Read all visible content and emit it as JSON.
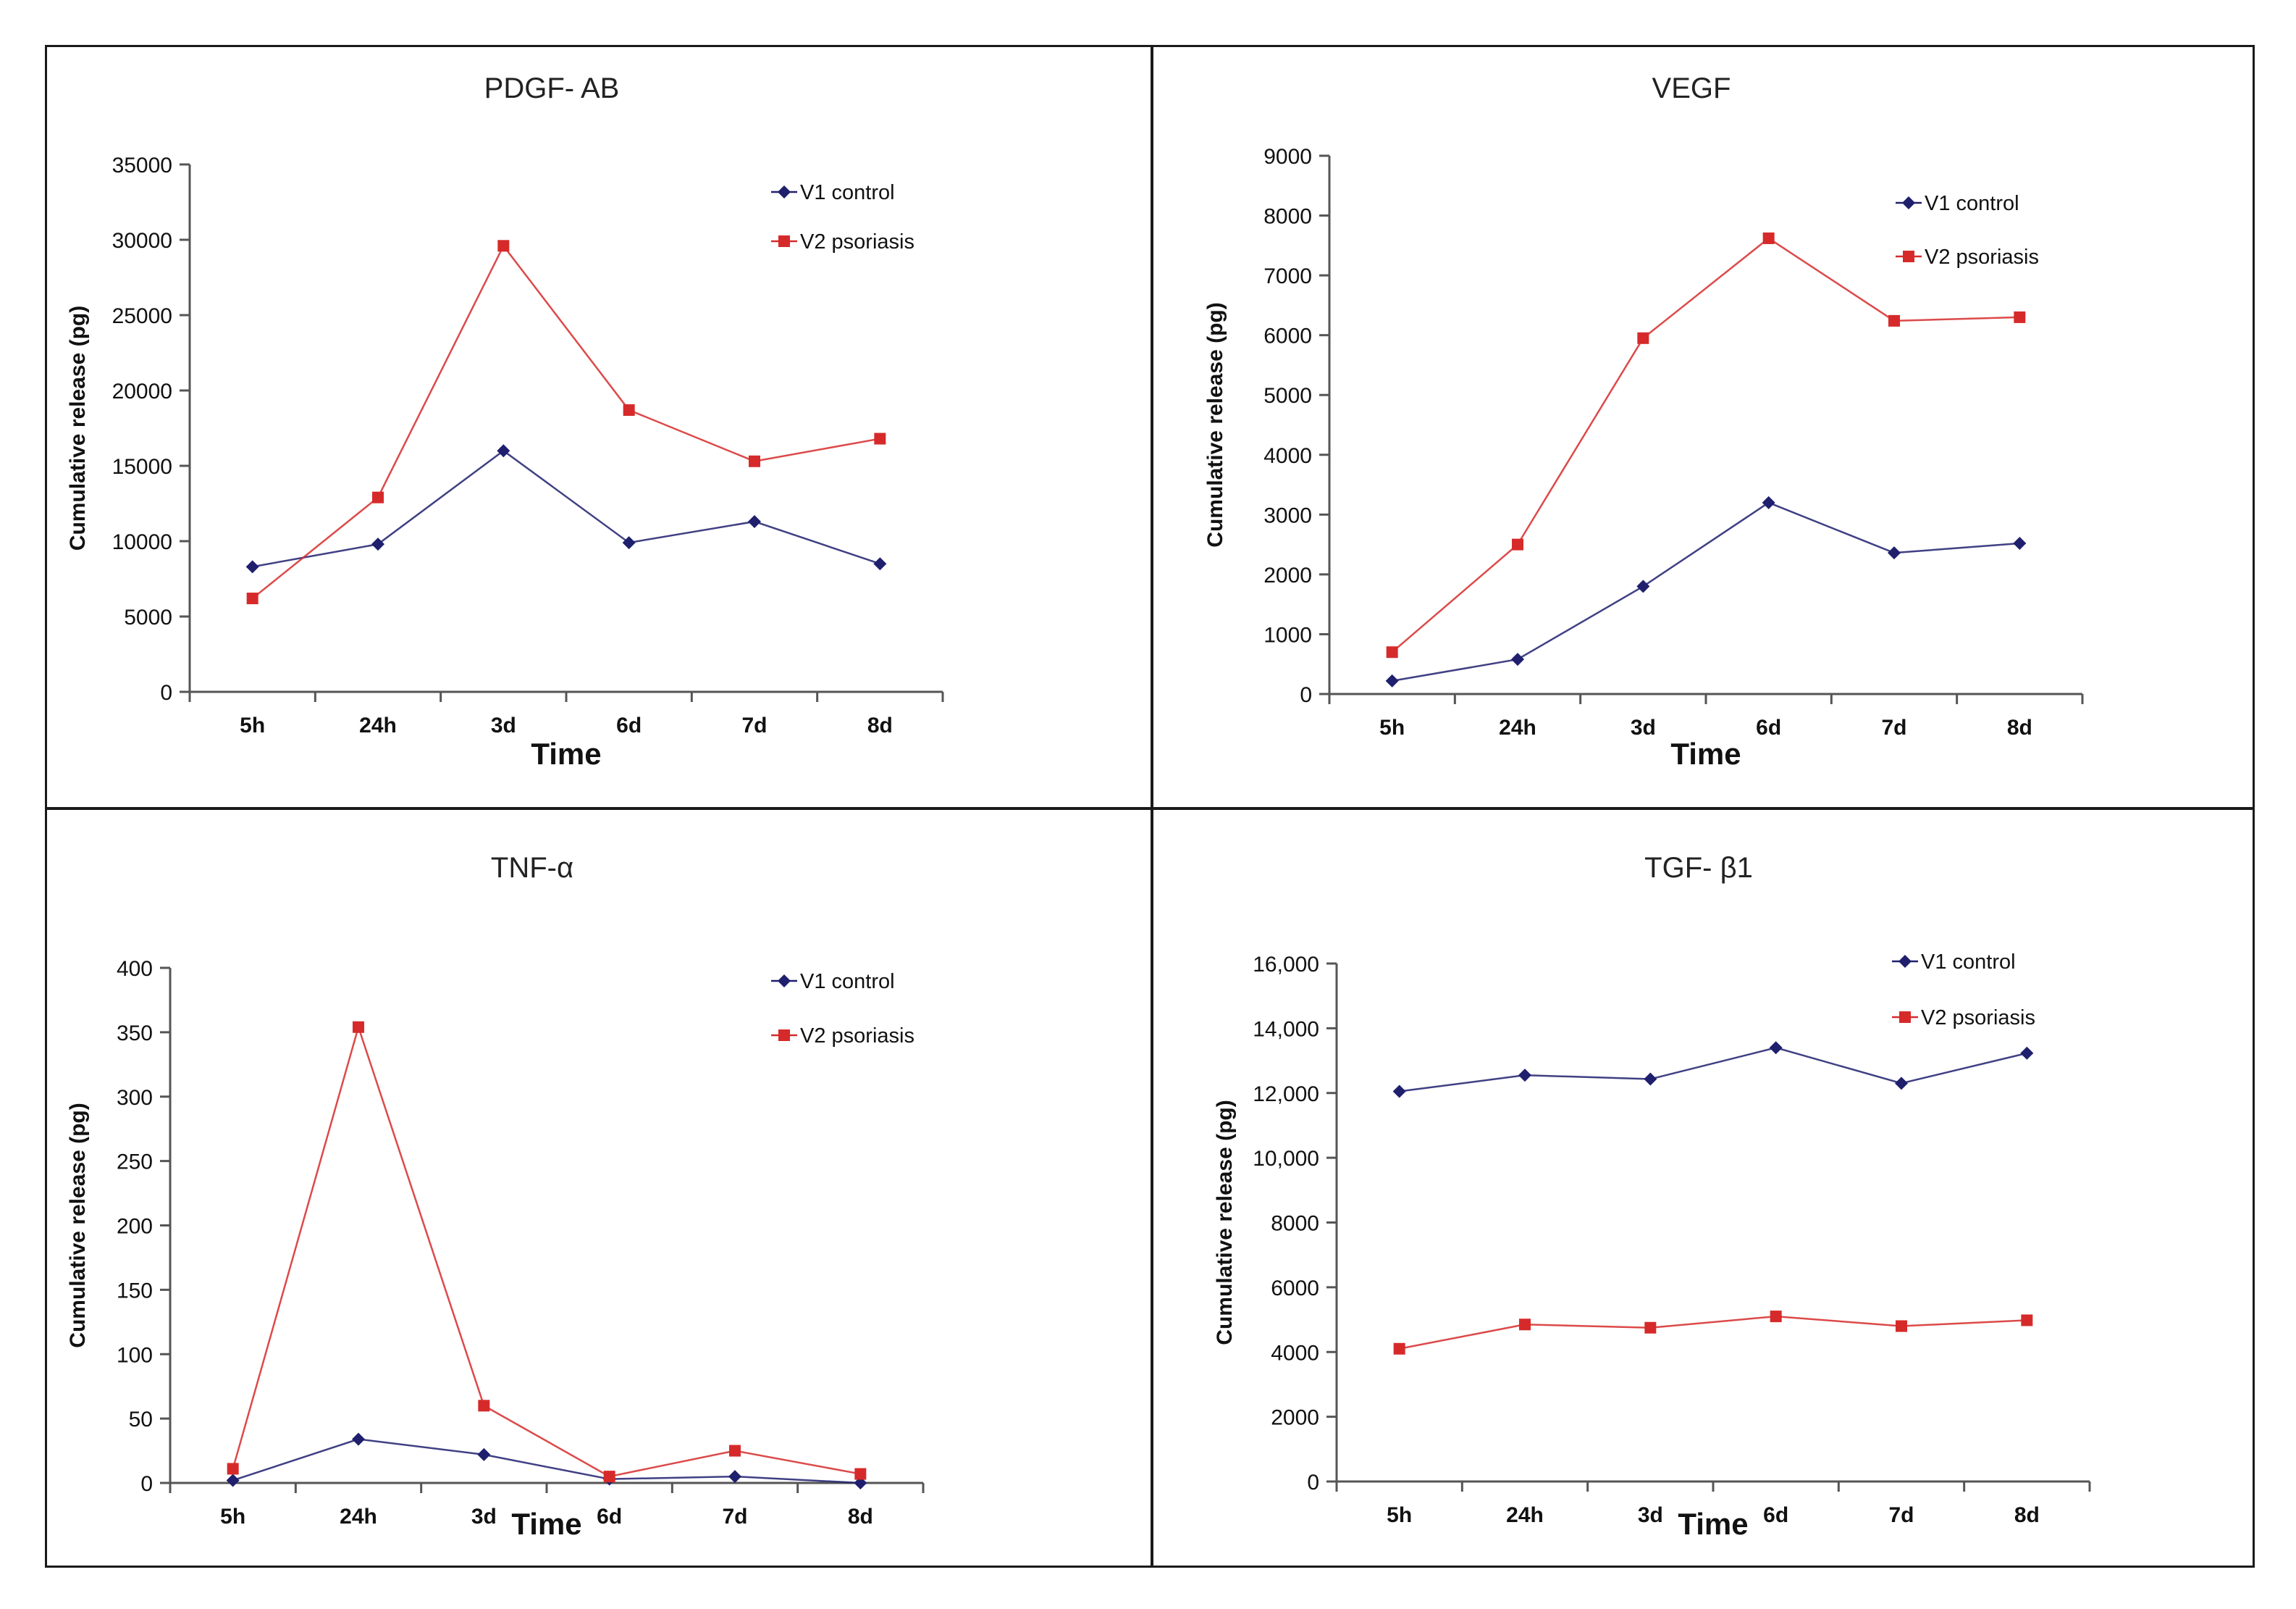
{
  "colors": {
    "control": "#1f1f6e",
    "psoriasis": "#d62a2a",
    "axis": "#555555"
  },
  "chart_data": [
    {
      "type": "line",
      "title": "PDGF- AB",
      "xlabel": "Time",
      "ylabel": "Cumulative release (pg)",
      "categories": [
        "5h",
        "24h",
        "3d",
        "6d",
        "7d",
        "8d"
      ],
      "ylim": [
        0,
        35000
      ],
      "yticks": [
        0,
        5000,
        10000,
        15000,
        20000,
        25000,
        30000,
        35000
      ],
      "ytick_labels": [
        "0",
        "5000",
        "10000",
        "15000",
        "20000",
        "25000",
        "30000",
        "35000"
      ],
      "legend": "top-right",
      "series": [
        {
          "name": "V1 control",
          "marker": "diamond",
          "values": [
            8300,
            9800,
            16000,
            9900,
            11300,
            8500
          ]
        },
        {
          "name": "V2 psoriasis",
          "marker": "square",
          "values": [
            6200,
            12900,
            29600,
            18700,
            15300,
            16800
          ]
        }
      ]
    },
    {
      "type": "line",
      "title": "VEGF",
      "xlabel": "Time",
      "ylabel": "Cumulative release (pg)",
      "categories": [
        "5h",
        "24h",
        "3d",
        "6d",
        "7d",
        "8d"
      ],
      "ylim": [
        0,
        9000
      ],
      "yticks": [
        0,
        1000,
        2000,
        3000,
        4000,
        5000,
        6000,
        7000,
        8000,
        9000
      ],
      "ytick_labels": [
        "0",
        "1000",
        "2000",
        "3000",
        "4000",
        "5000",
        "6000",
        "7000",
        "8000",
        "9000"
      ],
      "legend": "top-right",
      "series": [
        {
          "name": "V1 control",
          "marker": "diamond",
          "values": [
            220,
            580,
            1800,
            3200,
            2360,
            2520
          ]
        },
        {
          "name": "V2 psoriasis",
          "marker": "square",
          "values": [
            700,
            2500,
            5950,
            7620,
            6240,
            6300
          ]
        }
      ]
    },
    {
      "type": "line",
      "title": "TNF-α",
      "xlabel": "Time",
      "ylabel": "Cumulative release (pg)",
      "categories": [
        "5h",
        "24h",
        "3d",
        "6d",
        "7d",
        "8d"
      ],
      "ylim": [
        0,
        400
      ],
      "yticks": [
        0,
        50,
        100,
        150,
        200,
        250,
        300,
        350,
        400
      ],
      "ytick_labels": [
        "0",
        "50",
        "100",
        "150",
        "200",
        "250",
        "300",
        "350",
        "400"
      ],
      "legend": "top-right",
      "series": [
        {
          "name": "V1 control",
          "marker": "diamond",
          "values": [
            2,
            34,
            22,
            3,
            5,
            0
          ]
        },
        {
          "name": "V2 psoriasis",
          "marker": "square",
          "values": [
            11,
            354,
            60,
            5,
            25,
            7
          ]
        }
      ]
    },
    {
      "type": "line",
      "title": "TGF- β1",
      "xlabel": "Time",
      "ylabel": "Cumulative release (pg)",
      "categories": [
        "5h",
        "24h",
        "3d",
        "6d",
        "7d",
        "8d"
      ],
      "ylim": [
        0,
        16000
      ],
      "yticks": [
        0,
        2000,
        4000,
        6000,
        8000,
        10000,
        12000,
        14000,
        16000
      ],
      "ytick_labels": [
        "0",
        "2000",
        "4000",
        "6000",
        "8000",
        "10,000",
        "12,000",
        "14,000",
        "16,000"
      ],
      "legend": "top-right",
      "series": [
        {
          "name": "V1 control",
          "marker": "diamond",
          "values": [
            12050,
            12550,
            12430,
            13400,
            12300,
            13230
          ]
        },
        {
          "name": "V2 psoriasis",
          "marker": "square",
          "values": [
            4100,
            4850,
            4750,
            5100,
            4800,
            4980
          ]
        }
      ]
    }
  ]
}
